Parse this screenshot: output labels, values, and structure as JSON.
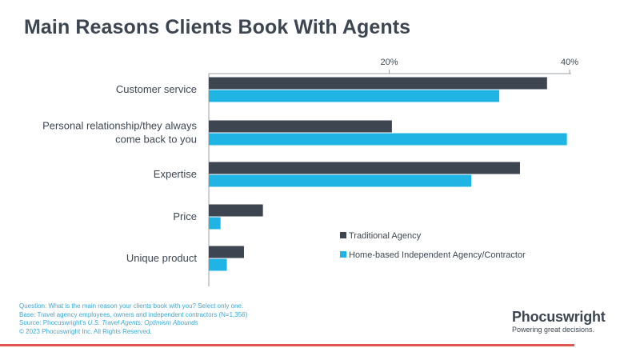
{
  "title": "Main Reasons Clients Book With Agents",
  "chart_data": {
    "type": "bar",
    "orientation": "horizontal",
    "categories": [
      [
        "Customer service"
      ],
      [
        "Personal relationship/they always",
        "come back to you"
      ],
      [
        "Expertise"
      ],
      [
        "Price"
      ],
      [
        "Unique product"
      ]
    ],
    "series": [
      {
        "name": "Traditional Agency",
        "color": "#3d4650",
        "values": [
          37.5,
          20.3,
          34.5,
          6.0,
          3.9
        ]
      },
      {
        "name": "Home-based Independent Agency/Contractor",
        "color": "#1fb4e4",
        "values": [
          32.2,
          39.7,
          29.1,
          1.3,
          2.0
        ]
      }
    ],
    "xlim": [
      0,
      40
    ],
    "xticks": [
      20,
      40
    ],
    "tick_labels": [
      "20%",
      "40%"
    ],
    "xaxis_position": "top",
    "legend": "right"
  },
  "footer": {
    "question": "Question: What is the main reason your clients book with you? Select only one.",
    "base": "Base: Travel agency employees, owners and independent contractors (N=1,356)",
    "source_prefix": "Source: Phocuswright's ",
    "source_title": "U.S. Travel Agents: Optimism Abounds",
    "copyright": "© 2023 Phocuswright Inc. All Rights Reserved."
  },
  "brand": {
    "name": "Phocuswright",
    "tagline": "Powering great decisions."
  }
}
